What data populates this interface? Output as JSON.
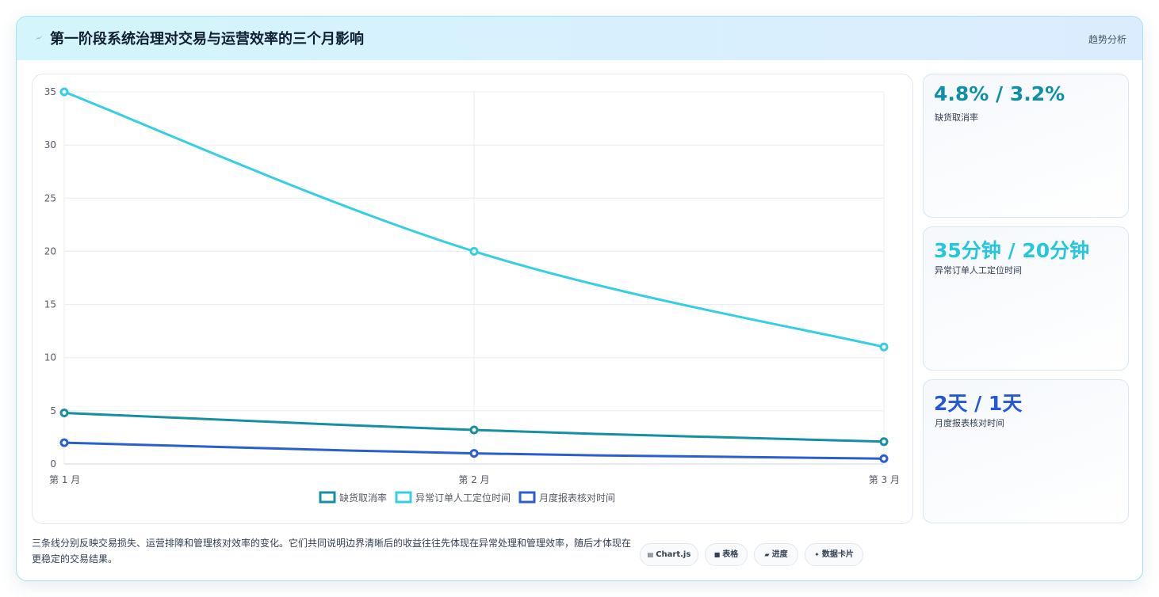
{
  "header": {
    "title": "第一阶段系统治理对交易与运营效率的三个月影响",
    "tag": "趋势分析"
  },
  "stats": [
    {
      "value": "4.8% / 3.2%",
      "label": "缺货取消率",
      "color": "#0e8fa8"
    },
    {
      "value": "35分钟 / 20分钟",
      "label": "异常订单人工定位时间",
      "color": "#26c6dd"
    },
    {
      "value": "2天 / 1天",
      "label": "月度报表核对时间",
      "color": "#2557d6"
    }
  ],
  "footer": {
    "description": "三条线分别反映交易损失、运营排障和管理核对效率的变化。它们共同说明边界清晰后的收益往往先体现在异常处理和管理效率，随后才体现在更稳定的交易结果。"
  },
  "chips": [
    {
      "icon": "▤",
      "label": "Chart.js"
    },
    {
      "icon": "■",
      "label": "表格"
    },
    {
      "icon": "▰",
      "label": "进度"
    },
    {
      "icon": "✦",
      "label": "数据卡片"
    }
  ],
  "chart_data": {
    "type": "line",
    "categories": [
      "第 1 月",
      "第 2 月",
      "第 3 月"
    ],
    "ylim": [
      0,
      35
    ],
    "yticks": [
      0,
      5,
      10,
      15,
      20,
      25,
      30,
      35
    ],
    "grid": true,
    "legend_position": "bottom",
    "series": [
      {
        "name": "缺货取消率",
        "values": [
          4.8,
          3.2,
          2.1
        ],
        "color": "#168fa3"
      },
      {
        "name": "异常订单人工定位时间",
        "values": [
          35,
          20,
          11
        ],
        "color": "#35cfe3"
      },
      {
        "name": "月度报表核对时间",
        "values": [
          2,
          1,
          0.5
        ],
        "color": "#2b5fd0"
      }
    ]
  }
}
